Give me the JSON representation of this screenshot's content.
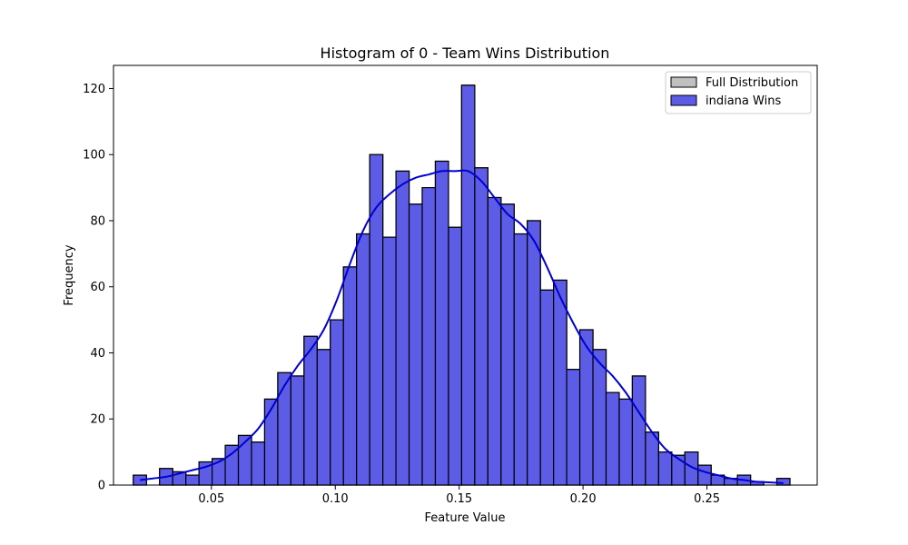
{
  "chart_data": {
    "type": "bar",
    "title": "Histogram of 0 - Team Wins Distribution",
    "xlabel": "Feature Value",
    "ylabel": "Frequency",
    "xlim": [
      0.0105,
      0.2945
    ],
    "ylim": [
      0,
      127
    ],
    "x_ticks": [
      0.05,
      0.1,
      0.15,
      0.2,
      0.25
    ],
    "x_tick_labels": [
      "0.05",
      "0.10",
      "0.15",
      "0.20",
      "0.25"
    ],
    "y_ticks": [
      0,
      20,
      40,
      60,
      80,
      100,
      120
    ],
    "y_tick_labels": [
      "0",
      "20",
      "40",
      "60",
      "80",
      "100",
      "120"
    ],
    "bin_start": 0.0185,
    "bin_width": 0.0053,
    "series": [
      {
        "name": "Full Distribution",
        "color": "#c0c0c0",
        "values": [
          3,
          0,
          5,
          4,
          3,
          7,
          8,
          12,
          15,
          13,
          26,
          34,
          33,
          45,
          41,
          50,
          66,
          76,
          100,
          75,
          95,
          85,
          90,
          98,
          78,
          121,
          96,
          87,
          85,
          76,
          80,
          59,
          62,
          35,
          47,
          41,
          28,
          26,
          33,
          16,
          10,
          9,
          10,
          6,
          3,
          2,
          3,
          1,
          0,
          2
        ]
      },
      {
        "name": "indiana Wins",
        "color": "#5c5ce6",
        "kde_color": "#0000d0",
        "values": [
          3,
          0,
          5,
          4,
          3,
          7,
          8,
          12,
          15,
          13,
          26,
          34,
          33,
          45,
          41,
          50,
          66,
          76,
          100,
          75,
          95,
          85,
          90,
          98,
          78,
          121,
          96,
          87,
          85,
          76,
          80,
          59,
          62,
          35,
          47,
          41,
          28,
          26,
          33,
          16,
          10,
          9,
          10,
          6,
          3,
          2,
          3,
          1,
          0,
          2
        ],
        "kde": [
          1.5,
          2,
          2.5,
          3.5,
          4.5,
          5.5,
          7,
          9.5,
          13,
          17,
          23,
          30,
          36,
          41,
          47,
          56,
          67,
          77,
          84,
          88,
          91,
          93,
          94,
          95,
          95,
          95,
          92,
          87,
          82,
          79,
          74,
          66,
          57,
          49,
          42,
          37,
          33,
          28,
          22,
          16,
          11,
          8,
          5.5,
          4,
          3,
          2,
          1.5,
          1,
          0.8,
          0.6
        ]
      }
    ],
    "legend_position": "top-right",
    "grid": false
  }
}
